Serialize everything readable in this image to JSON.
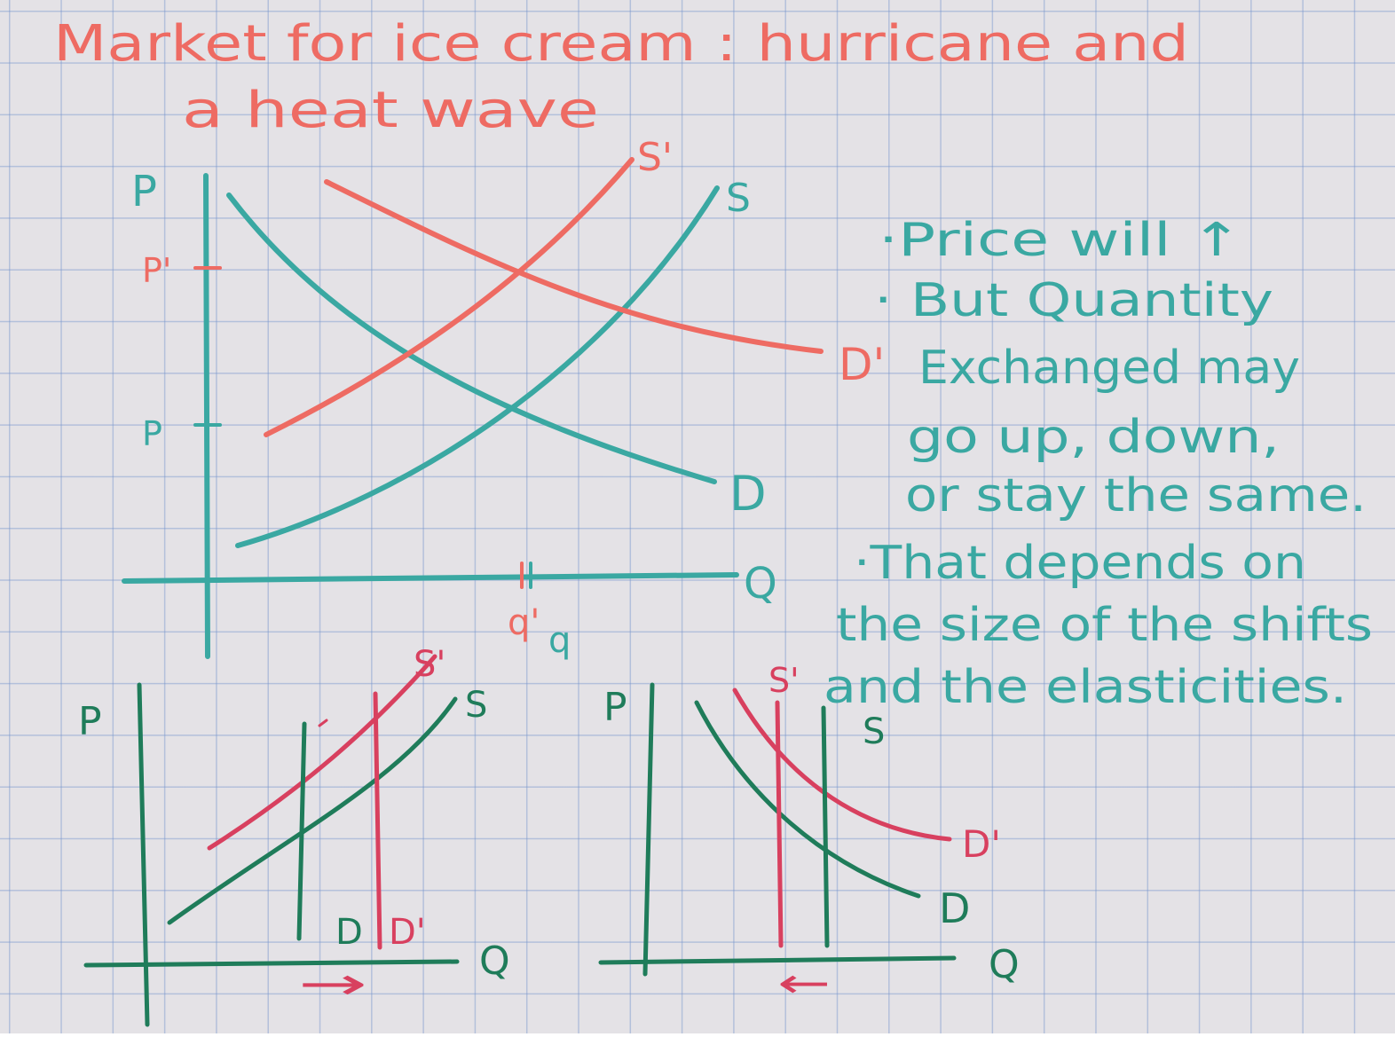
{
  "colors": {
    "red": "#ee6b63",
    "teal": "#3aa8a2",
    "pink": "#d8405f",
    "green": "#1f7c5a"
  },
  "title": {
    "line1": "Market for ice cream : hurricane and",
    "line2": "a heat wave"
  },
  "main_graph": {
    "axis_p": "P",
    "axis_q": "Q",
    "tick_p_prime": "P'",
    "tick_p": "P",
    "tick_q_prime": "q'",
    "tick_q": "q",
    "label_s_prime": "S'",
    "label_s": "S",
    "label_d_prime": "D'",
    "label_d": "D"
  },
  "notes": {
    "line1": "·Price will ↑",
    "line2": "· But Quantity",
    "line3": "Exchanged may",
    "line4": "go up, down,",
    "line5": "or stay the same.",
    "line6": "·That depends on",
    "line7": "the size of the shifts",
    "line8": "and the elasticities."
  },
  "graph_left": {
    "axis_p": "P",
    "axis_q": "Q",
    "label_s_prime": "S'",
    "label_s": "S",
    "label_d": "D",
    "label_d_prime": "D'",
    "shift_arrow": "→"
  },
  "graph_right": {
    "axis_p": "P",
    "axis_q": "Q",
    "label_s_prime": "S'",
    "label_s": "S",
    "label_d_prime": "D'",
    "label_d": "D",
    "shift_arrow": "←"
  }
}
